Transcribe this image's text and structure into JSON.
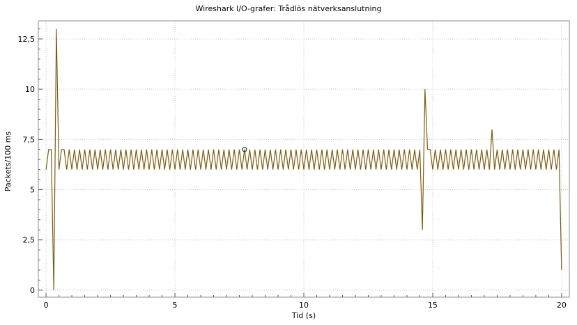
{
  "chart_data": {
    "type": "line",
    "title": "Wireshark I/O-grafer: Trådlös nätverksanslutning",
    "xlabel": "Tid (s)",
    "ylabel": "Packets/100 ms",
    "xlim": [
      -0.3,
      20.3
    ],
    "ylim": [
      -0.35,
      13.4
    ],
    "xticks": [
      0,
      5,
      10,
      15,
      20
    ],
    "xtick_labels": [
      "0",
      "5",
      "10",
      "15",
      "20"
    ],
    "yticks": [
      0,
      2.5,
      5,
      7.5,
      10,
      12.5
    ],
    "ytick_labels": [
      "0",
      "2,5",
      "5",
      "7,5",
      "10",
      "12,5"
    ],
    "grid": true,
    "line_color": "#7a5c12",
    "marker": {
      "x": 7.7,
      "y": 7
    },
    "series": [
      {
        "x": [
          0.0,
          0.1,
          0.2,
          0.3,
          0.4,
          0.5,
          0.6,
          0.7,
          0.8,
          0.9,
          1.0,
          1.1,
          1.2,
          1.3,
          1.4,
          1.5,
          1.6,
          1.7,
          1.8,
          1.9,
          2.0,
          2.1,
          2.2,
          2.3,
          2.4,
          2.5,
          2.6,
          2.7,
          2.8,
          2.9,
          3.0,
          3.1,
          3.2,
          3.3,
          3.4,
          3.5,
          3.6,
          3.7,
          3.8,
          3.9,
          4.0,
          4.1,
          4.2,
          4.3,
          4.4,
          4.5,
          4.6,
          4.7,
          4.8,
          4.9,
          5.0,
          5.1,
          5.2,
          5.3,
          5.4,
          5.5,
          5.6,
          5.7,
          5.8,
          5.9,
          6.0,
          6.1,
          6.2,
          6.3,
          6.4,
          6.5,
          6.6,
          6.7,
          6.8,
          6.9,
          7.0,
          7.1,
          7.2,
          7.3,
          7.4,
          7.5,
          7.6,
          7.7,
          7.8,
          7.9,
          8.0,
          8.1,
          8.2,
          8.3,
          8.4,
          8.5,
          8.6,
          8.7,
          8.8,
          8.9,
          9.0,
          9.1,
          9.2,
          9.3,
          9.4,
          9.5,
          9.6,
          9.7,
          9.8,
          9.9,
          10.0,
          10.1,
          10.2,
          10.3,
          10.4,
          10.5,
          10.6,
          10.7,
          10.8,
          10.9,
          11.0,
          11.1,
          11.2,
          11.3,
          11.4,
          11.5,
          11.6,
          11.7,
          11.8,
          11.9,
          12.0,
          12.1,
          12.2,
          12.3,
          12.4,
          12.5,
          12.6,
          12.7,
          12.8,
          12.9,
          13.0,
          13.1,
          13.2,
          13.3,
          13.4,
          13.5,
          13.6,
          13.7,
          13.8,
          13.9,
          14.0,
          14.1,
          14.2,
          14.3,
          14.4,
          14.5,
          14.6,
          14.7,
          14.8,
          14.9,
          15.0,
          15.1,
          15.2,
          15.3,
          15.4,
          15.5,
          15.6,
          15.7,
          15.8,
          15.9,
          16.0,
          16.1,
          16.2,
          16.3,
          16.4,
          16.5,
          16.6,
          16.7,
          16.8,
          16.9,
          17.0,
          17.1,
          17.2,
          17.3,
          17.4,
          17.5,
          17.6,
          17.7,
          17.8,
          17.9,
          18.0,
          18.1,
          18.2,
          18.3,
          18.4,
          18.5,
          18.6,
          18.7,
          18.8,
          18.9,
          19.0,
          19.1,
          19.2,
          19.3,
          19.4,
          19.5,
          19.6,
          19.7,
          19.8,
          19.9,
          20.0
        ],
        "y": [
          6,
          7,
          7,
          0,
          13,
          6,
          7,
          7,
          6,
          7,
          6,
          7,
          6,
          7,
          6,
          7,
          6,
          7,
          6,
          7,
          6,
          7,
          6,
          7,
          6,
          7,
          6,
          7,
          6,
          7,
          6,
          7,
          6,
          7,
          6,
          7,
          6,
          7,
          6,
          7,
          6,
          7,
          6,
          7,
          6,
          7,
          6,
          7,
          6,
          7,
          6,
          7,
          6,
          7,
          6,
          7,
          6,
          7,
          6,
          7,
          6,
          7,
          6,
          7,
          6,
          7,
          6,
          7,
          6,
          7,
          6,
          7,
          6,
          7,
          6,
          7,
          6,
          7,
          6,
          7,
          6,
          7,
          6,
          7,
          6,
          7,
          6,
          7,
          6,
          7,
          6,
          7,
          6,
          7,
          6,
          7,
          6,
          7,
          6,
          7,
          6,
          7,
          6,
          7,
          6,
          7,
          6,
          7,
          6,
          7,
          6,
          7,
          6,
          7,
          6,
          7,
          6,
          7,
          6,
          7,
          6,
          7,
          6,
          7,
          6,
          7,
          6,
          7,
          6,
          7,
          6,
          7,
          6,
          7,
          6,
          7,
          6,
          7,
          6,
          7,
          6,
          7,
          6,
          7,
          6,
          7,
          3,
          10,
          7,
          7,
          6,
          7,
          6,
          7,
          6,
          7,
          6,
          7,
          6,
          7,
          6,
          7,
          6,
          7,
          6,
          7,
          6,
          7,
          6,
          7,
          6,
          7,
          6,
          8,
          6,
          7,
          6,
          7,
          6,
          7,
          6,
          7,
          6,
          7,
          6,
          7,
          6,
          7,
          6,
          7,
          6,
          7,
          6,
          7,
          6,
          7,
          6,
          7,
          6,
          7,
          1
        ]
      }
    ]
  }
}
